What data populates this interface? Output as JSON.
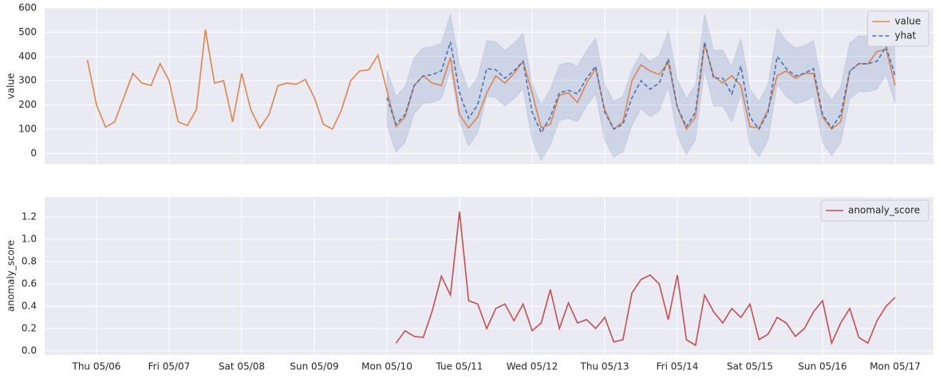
{
  "chart_data": [
    {
      "type": "line",
      "ylabel": "value",
      "legend": "upper right",
      "grid": true,
      "xlim": [
        5.286,
        17.527
      ],
      "ylim": [
        -45,
        600
      ],
      "yticks": [
        0,
        100,
        200,
        300,
        400,
        500,
        600
      ],
      "series": [
        {
          "name": "value",
          "color": "#dd8452",
          "style": "solid",
          "x": [
            5.875,
            6,
            6.125,
            6.25,
            6.375,
            6.5,
            6.625,
            6.75,
            6.875,
            7,
            7.125,
            7.25,
            7.375,
            7.5,
            7.625,
            7.75,
            7.875,
            8,
            8.125,
            8.25,
            8.375,
            8.5,
            8.625,
            8.75,
            8.875,
            9,
            9.125,
            9.25,
            9.375,
            9.5,
            9.625,
            9.75,
            9.875,
            10,
            10.125,
            10.25,
            10.375,
            10.5,
            10.625,
            10.75,
            10.875,
            11,
            11.125,
            11.25,
            11.375,
            11.5,
            11.625,
            11.75,
            11.875,
            12,
            12.125,
            12.25,
            12.375,
            12.5,
            12.625,
            12.75,
            12.875,
            13,
            13.125,
            13.25,
            13.375,
            13.5,
            13.625,
            13.75,
            13.875,
            14,
            14.125,
            14.25,
            14.375,
            14.5,
            14.625,
            14.75,
            14.875,
            15,
            15.125,
            15.25,
            15.375,
            15.5,
            15.625,
            15.75,
            15.875,
            16,
            16.125,
            16.25,
            16.375,
            16.5,
            16.625,
            16.75,
            16.875,
            17
          ],
          "values": [
            385,
            200,
            108,
            130,
            230,
            330,
            290,
            280,
            370,
            300,
            130,
            115,
            180,
            510,
            290,
            300,
            130,
            330,
            180,
            105,
            160,
            280,
            290,
            285,
            305,
            230,
            120,
            100,
            180,
            300,
            340,
            345,
            405,
            260,
            110,
            150,
            280,
            320,
            290,
            280,
            395,
            160,
            105,
            150,
            250,
            320,
            290,
            330,
            380,
            250,
            105,
            120,
            240,
            250,
            210,
            290,
            350,
            180,
            100,
            130,
            300,
            365,
            340,
            325,
            375,
            190,
            100,
            150,
            450,
            320,
            290,
            320,
            280,
            110,
            105,
            180,
            320,
            340,
            310,
            330,
            330,
            150,
            100,
            130,
            340,
            370,
            370,
            420,
            430,
            280
          ]
        },
        {
          "name": "yhat",
          "color": "#4c72b0",
          "style": "dashed",
          "x": [
            10,
            10.125,
            10.25,
            10.375,
            10.5,
            10.625,
            10.75,
            10.875,
            11,
            11.125,
            11.25,
            11.375,
            11.5,
            11.625,
            11.75,
            11.875,
            12,
            12.125,
            12.25,
            12.375,
            12.5,
            12.625,
            12.75,
            12.875,
            13,
            13.125,
            13.25,
            13.375,
            13.5,
            13.625,
            13.75,
            13.875,
            14,
            14.125,
            14.25,
            14.375,
            14.5,
            14.625,
            14.75,
            14.875,
            15,
            15.125,
            15.25,
            15.375,
            15.5,
            15.625,
            15.75,
            15.875,
            16,
            16.125,
            16.25,
            16.375,
            16.5,
            16.625,
            16.75,
            16.875,
            17
          ],
          "values": [
            230,
            120,
            160,
            280,
            320,
            325,
            340,
            460,
            250,
            145,
            200,
            350,
            345,
            310,
            340,
            380,
            170,
            85,
            150,
            250,
            260,
            245,
            310,
            360,
            170,
            100,
            120,
            230,
            300,
            265,
            290,
            390,
            190,
            110,
            170,
            460,
            310,
            310,
            245,
            360,
            150,
            100,
            170,
            400,
            350,
            320,
            330,
            350,
            160,
            105,
            160,
            340,
            370,
            370,
            380,
            440,
            320
          ]
        }
      ],
      "band": {
        "color": "#4c72b0",
        "x": [
          10,
          10.125,
          10.25,
          10.375,
          10.5,
          10.625,
          10.75,
          10.875,
          11,
          11.125,
          11.25,
          11.375,
          11.5,
          11.625,
          11.75,
          11.875,
          12,
          12.125,
          12.25,
          12.375,
          12.5,
          12.625,
          12.75,
          12.875,
          13,
          13.125,
          13.25,
          13.375,
          13.5,
          13.625,
          13.75,
          13.875,
          14,
          14.125,
          14.25,
          14.375,
          14.5,
          14.625,
          14.75,
          14.875,
          15,
          15.125,
          15.25,
          15.375,
          15.5,
          15.625,
          15.75,
          15.875,
          16,
          16.125,
          16.25,
          16.375,
          16.5,
          16.625,
          16.75,
          16.875,
          17
        ],
        "upper": [
          345,
          235,
          275,
          395,
          435,
          440,
          455,
          575,
          365,
          260,
          315,
          465,
          460,
          425,
          455,
          495,
          285,
          200,
          265,
          365,
          375,
          360,
          425,
          475,
          285,
          215,
          235,
          345,
          415,
          380,
          405,
          505,
          305,
          225,
          285,
          575,
          425,
          425,
          360,
          475,
          265,
          215,
          285,
          515,
          465,
          435,
          445,
          465,
          275,
          220,
          275,
          455,
          485,
          485,
          495,
          555,
          435
        ],
        "lower": [
          115,
          5,
          45,
          165,
          205,
          210,
          225,
          345,
          135,
          30,
          85,
          235,
          230,
          195,
          225,
          265,
          55,
          -30,
          35,
          135,
          145,
          130,
          195,
          245,
          55,
          -15,
          5,
          115,
          185,
          150,
          175,
          275,
          75,
          -5,
          55,
          345,
          195,
          195,
          130,
          245,
          35,
          -15,
          55,
          285,
          235,
          205,
          215,
          235,
          45,
          -10,
          45,
          225,
          255,
          255,
          265,
          325,
          205
        ]
      }
    },
    {
      "type": "line",
      "ylabel": "anomaly_score",
      "legend": "upper right",
      "grid": true,
      "xlim": [
        5.286,
        17.527
      ],
      "ylim": [
        -0.036,
        1.38
      ],
      "yticks": [
        {
          "value": 0,
          "label": "0.0"
        },
        0.2,
        0.4,
        0.6,
        0.8,
        {
          "value": 1,
          "label": "1.0"
        },
        1.2
      ],
      "xticks": [
        {
          "value": 6,
          "label": "Thu 05/06"
        },
        {
          "value": 7,
          "label": "Fri 05/07"
        },
        {
          "value": 8,
          "label": "Sat 05/08"
        },
        {
          "value": 9,
          "label": "Sun 05/09"
        },
        {
          "value": 10,
          "label": "Mon 05/10"
        },
        {
          "value": 11,
          "label": "Tue 05/11"
        },
        {
          "value": 12,
          "label": "Wed 05/12"
        },
        {
          "value": 13,
          "label": "Thu 05/13"
        },
        {
          "value": 14,
          "label": "Fri 05/14"
        },
        {
          "value": 15,
          "label": "Sat 05/15"
        },
        {
          "value": 16,
          "label": "Sun 05/16"
        },
        {
          "value": 17,
          "label": "Mon 05/17"
        }
      ],
      "series": [
        {
          "name": "anomaly_score",
          "color": "#c44e52",
          "style": "solid",
          "x": [
            10.125,
            10.25,
            10.375,
            10.5,
            10.625,
            10.75,
            10.875,
            11,
            11.125,
            11.25,
            11.375,
            11.5,
            11.625,
            11.75,
            11.875,
            12,
            12.125,
            12.25,
            12.375,
            12.5,
            12.625,
            12.75,
            12.875,
            13,
            13.125,
            13.25,
            13.375,
            13.5,
            13.625,
            13.75,
            13.875,
            14,
            14.125,
            14.25,
            14.375,
            14.5,
            14.625,
            14.75,
            14.875,
            15,
            15.125,
            15.25,
            15.375,
            15.5,
            15.625,
            15.75,
            15.875,
            16,
            16.125,
            16.25,
            16.375,
            16.5,
            16.625,
            16.75,
            16.875,
            17
          ],
          "values": [
            0.07,
            0.18,
            0.13,
            0.12,
            0.36,
            0.67,
            0.5,
            1.25,
            0.45,
            0.42,
            0.2,
            0.38,
            0.42,
            0.27,
            0.42,
            0.18,
            0.25,
            0.55,
            0.2,
            0.43,
            0.25,
            0.28,
            0.2,
            0.3,
            0.08,
            0.1,
            0.52,
            0.64,
            0.68,
            0.6,
            0.28,
            0.68,
            0.1,
            0.05,
            0.5,
            0.35,
            0.25,
            0.38,
            0.3,
            0.42,
            0.1,
            0.15,
            0.3,
            0.25,
            0.13,
            0.2,
            0.35,
            0.45,
            0.07,
            0.25,
            0.38,
            0.12,
            0.07,
            0.27,
            0.4,
            0.48
          ]
        }
      ]
    }
  ]
}
